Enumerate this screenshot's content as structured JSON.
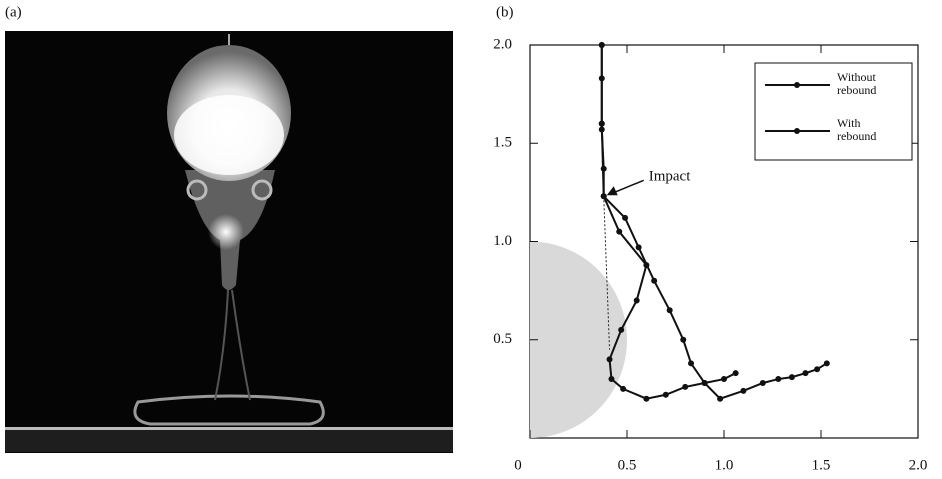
{
  "panel_labels": [
    "(a)",
    "(b)"
  ],
  "chart_data": {
    "type": "line",
    "xlim": [
      0,
      2
    ],
    "ylim": [
      0,
      2
    ],
    "xticks": [
      0,
      0.5,
      {
        "value": 1,
        "label": "1.0"
      },
      1.5,
      {
        "value": 2,
        "label": "2.0"
      }
    ],
    "yticks": [
      0.5,
      {
        "value": 1,
        "label": "1.0"
      },
      1.5,
      {
        "value": 2,
        "label": "2.0"
      }
    ],
    "legend": "top-right",
    "annotation": "Impact",
    "annotation_point": [
      0.38,
      1.23
    ],
    "sphere": {
      "center": [
        0,
        0.5
      ],
      "radius": 0.5,
      "color": "#d9d9d9"
    },
    "dotted_line": {
      "x": [
        0.38,
        0.41
      ],
      "values": [
        1.23,
        0.45
      ]
    },
    "series": [
      {
        "name": "Without rebound",
        "color": "#111111",
        "x": [
          0.37,
          0.37,
          0.37,
          0.37,
          0.38,
          0.38,
          0.49,
          0.56,
          0.64,
          0.72,
          0.79,
          0.83,
          0.9,
          0.98,
          1.1,
          1.2,
          1.28,
          1.35,
          1.42,
          1.48,
          1.53
        ],
        "values": [
          2.0,
          1.83,
          1.6,
          1.57,
          1.37,
          1.23,
          1.12,
          0.97,
          0.8,
          0.65,
          0.5,
          0.38,
          0.28,
          0.2,
          0.24,
          0.28,
          0.3,
          0.31,
          0.33,
          0.35,
          0.38
        ]
      },
      {
        "name": "With rebound",
        "color": "#111111",
        "x": [
          0.37,
          0.37,
          0.38,
          0.46,
          0.6,
          0.55,
          0.47,
          0.41,
          0.42,
          0.48,
          0.6,
          0.7,
          0.8,
          0.9,
          1.0,
          1.06
        ],
        "values": [
          2.0,
          1.6,
          1.23,
          1.05,
          0.88,
          0.7,
          0.55,
          0.4,
          0.3,
          0.25,
          0.2,
          0.22,
          0.26,
          0.28,
          0.3,
          0.33
        ]
      }
    ]
  }
}
